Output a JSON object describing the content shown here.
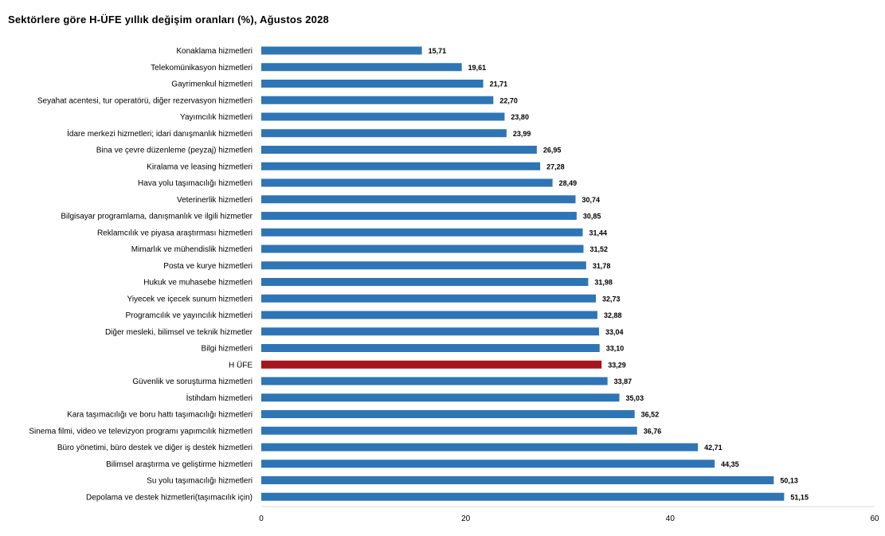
{
  "chart_data": {
    "type": "bar",
    "orientation": "horizontal",
    "title": "Sektörlere göre H-ÜFE yıllık değişim oranları (%), Ağustos 2028",
    "xlim": [
      0,
      60
    ],
    "xticks": [
      0,
      20,
      40,
      60
    ],
    "grid": false,
    "bar_color": "#2e75b6",
    "highlight_color": "#a6141c",
    "highlight_category": "H ÜFE",
    "categories": [
      "Konaklama hizmetleri",
      "Telekomünikasyon hizmetleri",
      "Gayrimenkul hizmetleri",
      "Seyahat acentesi, tur operatörü, diğer rezervasyon hizmetleri",
      "Yayımcılık hizmetleri",
      "İdare merkezi hizmetleri; idari danışmanlık hizmetleri",
      "Bina ve çevre düzenleme (peyzaj) hizmetleri",
      "Kiralama ve leasing hizmetleri",
      "Hava yolu taşımacılığı hizmetleri",
      "Veterinerlik hizmetleri",
      "Bilgisayar programlama, danışmanlık ve ilgili hizmetler",
      "Reklamcılık ve piyasa araştırması hizmetleri",
      "Mimarlık ve mühendislik hizmetleri",
      "Posta ve kurye hizmetleri",
      "Hukuk ve muhasebe hizmetleri",
      "Yiyecek ve içecek sunum hizmetleri",
      "Programcılık ve yayıncılık hizmetleri",
      "Diğer mesleki, bilimsel ve teknik hizmetler",
      "Bilgi hizmetleri",
      "H ÜFE",
      "Güvenlik ve soruşturma hizmetleri",
      "İstihdam hizmetleri",
      "Kara taşımacılığı ve boru hattı taşımacılığı hizmetleri",
      "Sinema filmi, video ve televizyon programı yapımcılık hizmetleri",
      "Büro yönetimi, büro destek ve diğer iş destek hizmetleri",
      "Bilimsel araştırma ve geliştirme hizmetleri",
      "Su yolu taşımacılığı hizmetleri",
      "Depolama ve destek hizmetleri(taşımacılık için)"
    ],
    "values": [
      15.71,
      19.61,
      21.71,
      22.7,
      23.8,
      23.99,
      26.95,
      27.28,
      28.49,
      30.74,
      30.85,
      31.44,
      31.52,
      31.78,
      31.98,
      32.73,
      32.88,
      33.04,
      33.1,
      33.29,
      33.87,
      35.03,
      36.52,
      36.76,
      42.71,
      44.35,
      50.13,
      51.15
    ],
    "value_labels": [
      "15,71",
      "19,61",
      "21,71",
      "22,70",
      "23,80",
      "23,99",
      "26,95",
      "27,28",
      "28,49",
      "30,74",
      "30,85",
      "31,44",
      "31,52",
      "31,78",
      "31,98",
      "32,73",
      "32,88",
      "33,04",
      "33,10",
      "33,29",
      "33,87",
      "35,03",
      "36,52",
      "36,76",
      "42,71",
      "44,35",
      "50,13",
      "51,15"
    ]
  }
}
